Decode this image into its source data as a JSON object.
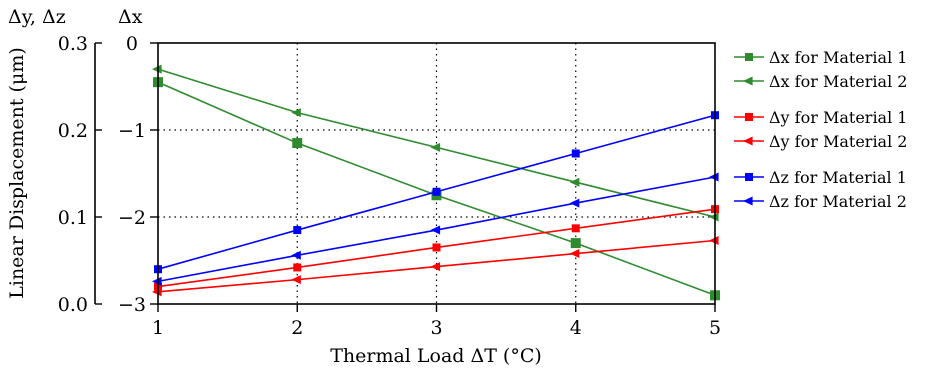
{
  "chart_data": {
    "type": "line",
    "xlabel": "Thermal Load ΔT (°C)",
    "ylabel": "Linear Displacement (μm)",
    "left_axis_header": "Δy, Δz",
    "right_axis_header": "Δx",
    "x_ticks": [
      "1",
      "2",
      "3",
      "4",
      "5"
    ],
    "left_ticks": [
      "0.3",
      "0.2",
      "0.1",
      "0.0"
    ],
    "right_ticks": [
      "0",
      "−1",
      "−2",
      "−3"
    ],
    "xlim": [
      1,
      5
    ],
    "ylim_left": [
      0.0,
      0.3
    ],
    "ylim_right": [
      -3,
      0
    ],
    "grid": "dotted, x = 2, 3, 4; Δx = −1, −2",
    "legend_position": "right",
    "x": [
      1,
      2,
      3,
      4,
      5
    ],
    "series": [
      {
        "name": "Δx for Material 1",
        "axis": "right",
        "marker": "square",
        "color": "#2e8b2e",
        "values": [
          -0.45,
          -1.15,
          -1.75,
          -2.3,
          -2.9
        ]
      },
      {
        "name": "Δx for Material 2",
        "axis": "right",
        "marker": "triangle-left",
        "color": "#2e8b2e",
        "values": [
          -0.3,
          -0.8,
          -1.2,
          -1.6,
          -2.0
        ]
      },
      {
        "name": "Δy for Material 1",
        "axis": "left",
        "marker": "square",
        "color": "#ff0000",
        "values": [
          0.02,
          0.042,
          0.065,
          0.087,
          0.109
        ]
      },
      {
        "name": "Δy for Material 2",
        "axis": "left",
        "marker": "triangle-left",
        "color": "#ff0000",
        "values": [
          0.014,
          0.028,
          0.043,
          0.058,
          0.073
        ]
      },
      {
        "name": "Δz for Material 1",
        "axis": "left",
        "marker": "square",
        "color": "#0000ff",
        "values": [
          0.04,
          0.085,
          0.129,
          0.173,
          0.217
        ]
      },
      {
        "name": "Δz for Material 2",
        "axis": "left",
        "marker": "triangle-left",
        "color": "#0000ff",
        "values": [
          0.026,
          0.056,
          0.085,
          0.116,
          0.146
        ]
      }
    ]
  }
}
